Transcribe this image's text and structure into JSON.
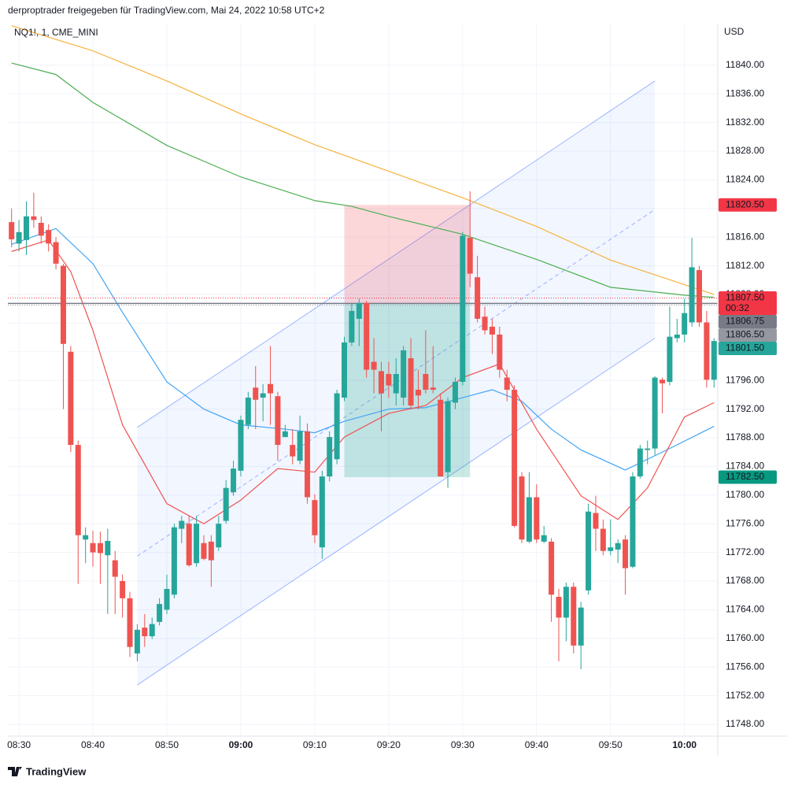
{
  "chart_data": {
    "type": "candlestick",
    "title": "derproptrader freigegeben für TradingView.com, Mai 24, 2022 10:58 UTC+2",
    "subtitle": "NQ1!, 1, CME_MINI",
    "y_axis_label": "USD",
    "brand": "TradingView",
    "up_color": "#26a69a",
    "down_color": "#ef5350",
    "grid": true,
    "xlim": [
      "08:29",
      "10:04"
    ],
    "ylim": [
      11746.35,
      11845.8
    ],
    "xticks": [
      "08:30",
      "08:40",
      "08:50",
      "09:00",
      "09:10",
      "09:20",
      "09:30",
      "09:40",
      "09:50",
      "10:00"
    ],
    "yticks": [
      {
        "value": 11748,
        "label": "11748.00"
      },
      {
        "value": 11752,
        "label": "11752.00"
      },
      {
        "value": 11756,
        "label": "11756.00"
      },
      {
        "value": 11760,
        "label": "11760.00"
      },
      {
        "value": 11764,
        "label": "11764.00"
      },
      {
        "value": 11768,
        "label": "11768.00"
      },
      {
        "value": 11772,
        "label": "11772.00"
      },
      {
        "value": 11776,
        "label": "11776.00"
      },
      {
        "value": 11780,
        "label": "11780.00"
      },
      {
        "value": 11784,
        "label": "11784.00"
      },
      {
        "value": 11788,
        "label": "11788.00"
      },
      {
        "value": 11792,
        "label": "11792.00"
      },
      {
        "value": 11796,
        "label": "11796.00"
      },
      {
        "value": 11800,
        "label": "11800.00"
      },
      {
        "value": 11804,
        "label": "11804.00"
      },
      {
        "value": 11808,
        "label": "11808.00"
      },
      {
        "value": 11812,
        "label": "11812.00"
      },
      {
        "value": 11816,
        "label": "11816.00"
      },
      {
        "value": 11820,
        "label": "11820.00"
      },
      {
        "value": 11824,
        "label": "11824.00"
      },
      {
        "value": 11828,
        "label": "11828.00"
      },
      {
        "value": 11832,
        "label": "11832.00"
      },
      {
        "value": 11836,
        "label": "11836.00"
      },
      {
        "value": 11840,
        "label": "11840.00"
      }
    ],
    "x": [
      "08:29",
      "08:30",
      "08:31",
      "08:32",
      "08:33",
      "08:34",
      "08:35",
      "08:36",
      "08:37",
      "08:38",
      "08:39",
      "08:40",
      "08:41",
      "08:42",
      "08:43",
      "08:44",
      "08:45",
      "08:46",
      "08:47",
      "08:48",
      "08:49",
      "08:50",
      "08:51",
      "08:52",
      "08:53",
      "08:54",
      "08:55",
      "08:56",
      "08:57",
      "08:58",
      "08:59",
      "09:00",
      "09:01",
      "09:02",
      "09:03",
      "09:04",
      "09:05",
      "09:06",
      "09:07",
      "09:08",
      "09:09",
      "09:10",
      "09:11",
      "09:12",
      "09:13",
      "09:14",
      "09:15",
      "09:16",
      "09:17",
      "09:18",
      "09:19",
      "09:20",
      "09:21",
      "09:22",
      "09:23",
      "09:24",
      "09:25",
      "09:26",
      "09:27",
      "09:28",
      "09:29",
      "09:30",
      "09:31",
      "09:32",
      "09:33",
      "09:34",
      "09:35",
      "09:36",
      "09:37",
      "09:38",
      "09:39",
      "09:40",
      "09:41",
      "09:42",
      "09:43",
      "09:44",
      "09:45",
      "09:46",
      "09:47",
      "09:48",
      "09:49",
      "09:50",
      "09:51",
      "09:52",
      "09:53",
      "09:54",
      "09:55",
      "09:56",
      "09:57",
      "09:58",
      "09:59",
      "10:00",
      "10:01",
      "10:02",
      "10:03",
      "10:04"
    ],
    "open": [
      11818.1,
      11815.1,
      11815.6,
      11818.9,
      11818,
      11817,
      11815.3,
      11812,
      11800,
      11787,
      11773.8,
      11773.3,
      11773.3,
      11771.6,
      11770.9,
      11768,
      11765.6,
      11757.9,
      11761.5,
      11760.3,
      11762.3,
      11764,
      11766.1,
      11775.3,
      11776,
      11770.5,
      11773.3,
      11773.5,
      11772.7,
      11776.4,
      11780.4,
      11783.4,
      11789.8,
      11795,
      11793.6,
      11795.5,
      11793.8,
      11788.1,
      11787,
      11784.8,
      11788.9,
      11779.3,
      11772.7,
      11782.6,
      11785,
      11793.6,
      11801.3,
      11804.6,
      11806.8,
      11798.6,
      11797.3,
      11796.9,
      11794.2,
      11793.6,
      11799.1,
      11794.7,
      11796.9,
      11795,
      11793.3,
      11783.2,
      11792.9,
      11795.8,
      11815.9,
      11810.4,
      11804.9,
      11803.5,
      11802.4,
      11796.4,
      11794.7,
      11782.6,
      11773.5,
      11779.7,
      11773.5,
      11773.5,
      11765.8,
      11762.9,
      11767.2,
      11759,
      11766.7,
      11777.5,
      11775.3,
      11772.2,
      11772.4,
      11773.8,
      11770,
      11782.6,
      11786.3,
      11786.5,
      11796.1,
      11795.8,
      11801.9,
      11802.4,
      11804.1,
      11811.4,
      11804.1,
      11796.1
    ],
    "high": [
      11820,
      11818.4,
      11821,
      11822.2,
      11818.9,
      11817.8,
      11816,
      11812.3,
      11800.8,
      11787.6,
      11775.5,
      11775,
      11774.9,
      11775.3,
      11772.2,
      11768.9,
      11766.5,
      11762,
      11763.4,
      11762.9,
      11765.6,
      11768.9,
      11776,
      11777.1,
      11777.1,
      11777.1,
      11774.4,
      11774.4,
      11777.1,
      11782.1,
      11784.8,
      11791.1,
      11794.4,
      11798,
      11795.5,
      11800.8,
      11794.4,
      11789.8,
      11789.2,
      11791.1,
      11790,
      11780.1,
      11783.4,
      11788.9,
      11794.7,
      11802.1,
      11806.8,
      11807.4,
      11807.1,
      11801.9,
      11798.6,
      11798.6,
      11799.1,
      11800.8,
      11801.9,
      11797.5,
      11803,
      11800.8,
      11794.2,
      11793.6,
      11796.4,
      11816.7,
      11822.4,
      11813.4,
      11806.3,
      11804.6,
      11803.5,
      11797.5,
      11795.3,
      11783.2,
      11783.2,
      11781.5,
      11775.7,
      11774,
      11766.9,
      11767.8,
      11767.8,
      11765.1,
      11778.8,
      11779.9,
      11776.6,
      11776.6,
      11773.8,
      11774.4,
      11783.2,
      11787,
      11787.6,
      11796.6,
      11796.4,
      11806.3,
      11804.6,
      11807.4,
      11815.9,
      11812,
      11805.7,
      11801.9
    ],
    "low": [
      11814.6,
      11814,
      11813.5,
      11817.3,
      11815.1,
      11814,
      11811.5,
      11792,
      11786,
      11767.6,
      11770.5,
      11770,
      11767.6,
      11763.4,
      11763.4,
      11762.9,
      11757.4,
      11756.8,
      11758.8,
      11759.9,
      11761.8,
      11763.4,
      11765.6,
      11773.3,
      11770,
      11770,
      11770.9,
      11767.2,
      11772.2,
      11776,
      11779.9,
      11782.6,
      11789.2,
      11789.2,
      11790.3,
      11789.8,
      11784.8,
      11788.1,
      11784.3,
      11784.3,
      11778.8,
      11773.3,
      11771.1,
      11781.9,
      11784.3,
      11793.1,
      11800.8,
      11800.8,
      11796.4,
      11794.2,
      11788.9,
      11793.6,
      11792.5,
      11792.5,
      11792,
      11792,
      11794.2,
      11794.2,
      11782.6,
      11781,
      11792,
      11795.3,
      11809,
      11804.1,
      11802.4,
      11799.7,
      11796.4,
      11793.1,
      11775.5,
      11773.3,
      11773.3,
      11773.3,
      11773.3,
      11762.3,
      11756.8,
      11759.6,
      11757.9,
      11755.7,
      11766.1,
      11772.2,
      11771.6,
      11771.6,
      11770.5,
      11766.1,
      11769.8,
      11782.3,
      11784.3,
      11785.6,
      11791.4,
      11795.3,
      11801.3,
      11801.3,
      11803.5,
      11803.5,
      11795,
      11795
    ],
    "close": [
      11815.7,
      11816.7,
      11818.9,
      11818.4,
      11816.2,
      11815.1,
      11812.3,
      11801.1,
      11787,
      11774.4,
      11774.4,
      11772,
      11771.9,
      11773.6,
      11768.6,
      11765.6,
      11758.8,
      11761.2,
      11760.3,
      11762,
      11764.8,
      11766.9,
      11775.5,
      11776.4,
      11770.2,
      11776,
      11771.1,
      11770.9,
      11776,
      11781,
      11783.7,
      11790.5,
      11793.6,
      11793.3,
      11794.2,
      11794.2,
      11787,
      11788.9,
      11785.4,
      11788.9,
      11779.7,
      11774.4,
      11782.6,
      11788.1,
      11794.2,
      11801.3,
      11805.7,
      11806.8,
      11797.5,
      11797.5,
      11794.2,
      11795.3,
      11796.9,
      11800.2,
      11792.5,
      11793.9,
      11794.7,
      11794.7,
      11782.6,
      11793.1,
      11795.8,
      11816.2,
      11810.9,
      11804.6,
      11803,
      11802.4,
      11797.5,
      11794.7,
      11775.7,
      11773.8,
      11779.7,
      11773.8,
      11774.4,
      11766.1,
      11762.9,
      11767.2,
      11759,
      11764.3,
      11777.7,
      11775.3,
      11772.2,
      11772.7,
      11773.3,
      11769.8,
      11782.6,
      11786.5,
      11786.5,
      11796.4,
      11795.6,
      11802.1,
      11802.4,
      11805.4,
      11811.8,
      11804.1,
      11796.1,
      11801.5
    ],
    "lines": [
      {
        "color": "#f7b23b",
        "x": [
          "08:29",
          "08:40",
          "08:50",
          "09:00",
          "09:10",
          "09:20",
          "09:30",
          "09:40",
          "09:50",
          "10:04"
        ],
        "values": [
          11845.5,
          11842,
          11837.8,
          11833.2,
          11828.9,
          11825.2,
          11821.5,
          11817.5,
          11812.8,
          11808
        ]
      },
      {
        "color": "#4caf50",
        "x": [
          "08:29",
          "08:35",
          "08:40",
          "08:50",
          "09:00",
          "09:10",
          "09:15",
          "09:20",
          "09:30",
          "09:40",
          "09:50",
          "10:00",
          "10:04"
        ],
        "values": [
          11840.3,
          11838.7,
          11834.8,
          11828.8,
          11824.4,
          11821.1,
          11820.3,
          11818.9,
          11816.4,
          11812.9,
          11809,
          11807.9,
          11807.6
        ]
      },
      {
        "color": "#42a5f5",
        "x": [
          "08:29",
          "08:35",
          "08:40",
          "08:44",
          "08:50",
          "08:55",
          "09:00",
          "09:06",
          "09:10",
          "09:14",
          "09:20",
          "09:25",
          "09:30",
          "09:34",
          "09:38",
          "09:42",
          "09:46",
          "09:52",
          "09:58",
          "10:04"
        ],
        "values": [
          11815,
          11817.2,
          11812.3,
          11805.5,
          11795.8,
          11792,
          11789.8,
          11789.2,
          11788.7,
          11790.3,
          11792,
          11792.2,
          11793.6,
          11794.7,
          11793.1,
          11789.2,
          11786.3,
          11783.5,
          11786.5,
          11789.6
        ]
      },
      {
        "color": "#ef5350",
        "x": [
          "08:29",
          "08:34",
          "08:37",
          "08:40",
          "08:44",
          "08:50",
          "08:55",
          "09:00",
          "09:05",
          "09:10",
          "09:14",
          "09:20",
          "09:25",
          "09:30",
          "09:35",
          "09:40",
          "09:46",
          "09:51",
          "09:55",
          "10:00",
          "10:04"
        ],
        "values": [
          11814,
          11815.6,
          11811.2,
          11803,
          11789.8,
          11778.8,
          11776,
          11779.3,
          11783.7,
          11783.2,
          11788.1,
          11791.4,
          11792.5,
          11796.4,
          11798.3,
          11789.2,
          11779.9,
          11776.6,
          11781,
          11790.9,
          11792.9
        ]
      }
    ],
    "channel": {
      "start": "08:46",
      "end": "09:56",
      "upper": [
        11789.45,
        11837.8
      ],
      "lower": [
        11753.5,
        11801.9
      ],
      "color": "#2962ff"
    },
    "position": {
      "start": "09:14",
      "end": "09:31",
      "entry": 11806.75,
      "stop": 11820.5,
      "target": 11782.5
    },
    "price_labels": [
      {
        "value": 11820.5,
        "label": "11820.50",
        "color": "#f23645"
      },
      {
        "value": 11807.5,
        "label": "11807.50",
        "countdown": "00:32",
        "color": "#f23645",
        "line": "dotted"
      },
      {
        "value": 11806.75,
        "label": "11806.75",
        "color": "#787b86",
        "line": "solid"
      },
      {
        "value": 11806.5,
        "label": "11806.50",
        "color": "#9598a1",
        "line": "dotted"
      },
      {
        "value": 11801.5,
        "label": "11801.50",
        "color": "#26a69a"
      },
      {
        "value": 11782.5,
        "label": "11782.50",
        "color": "#089981"
      }
    ]
  }
}
